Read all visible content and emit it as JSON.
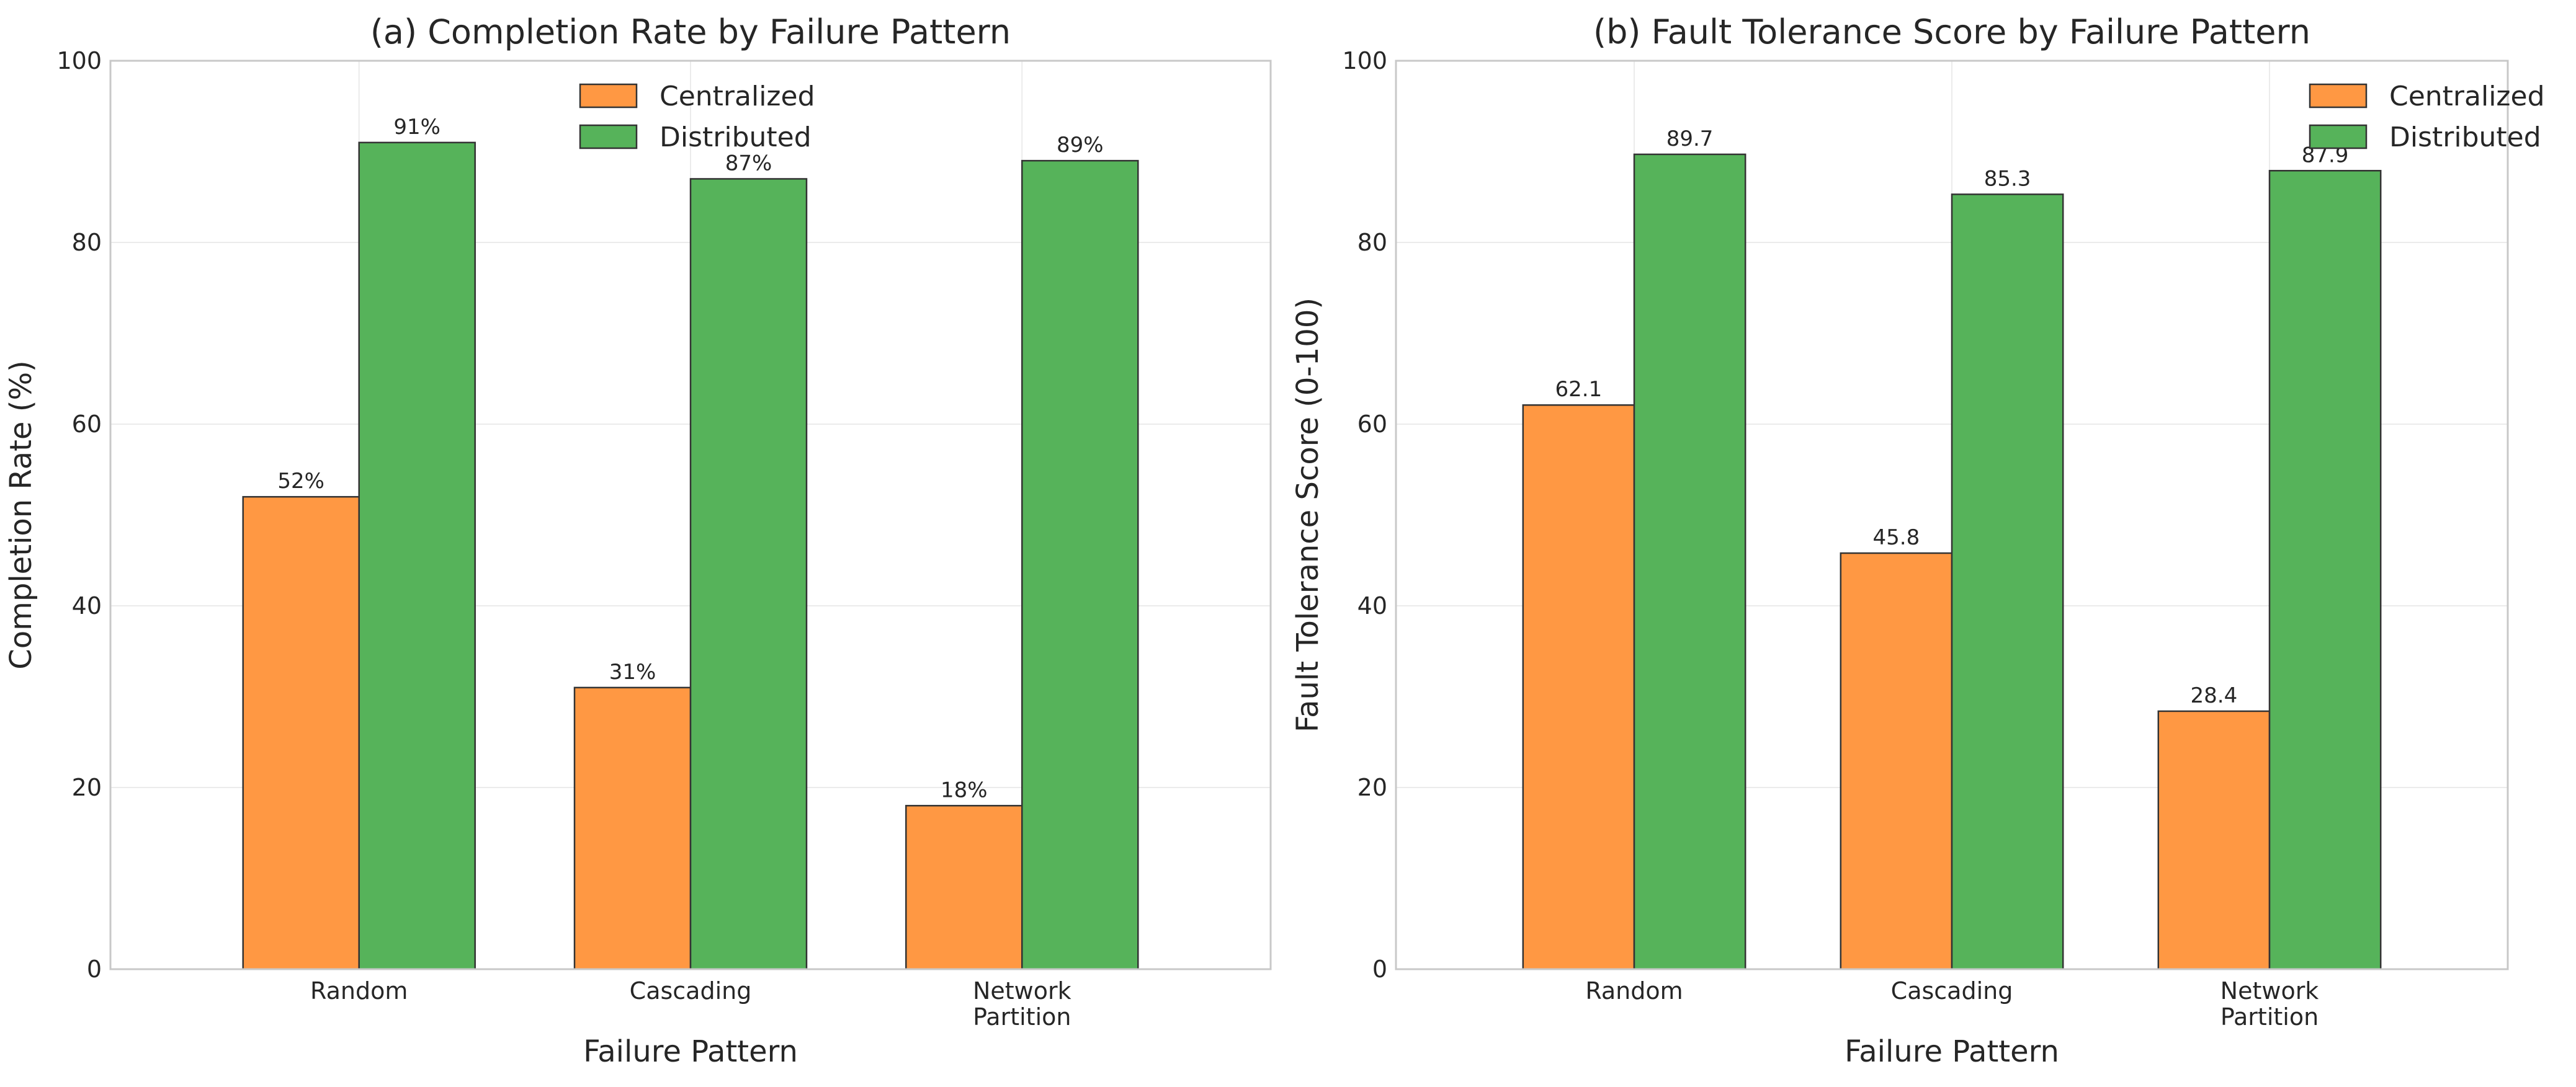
{
  "colors": {
    "centralized": "#ff9843",
    "distributed": "#56b35a"
  },
  "chart_data": [
    {
      "type": "bar",
      "title": "(a) Completion Rate by Failure Pattern",
      "xlabel": "Failure Pattern",
      "ylabel": "Completion Rate (%)",
      "ylim": [
        0,
        100
      ],
      "yticks": [
        0,
        20,
        40,
        60,
        80,
        100
      ],
      "grid": true,
      "legend_position": "top-center",
      "categories": [
        [
          "Random"
        ],
        [
          "Cascading"
        ],
        [
          "Network",
          "Partition"
        ]
      ],
      "series": [
        {
          "name": "Centralized",
          "color_key": "centralized",
          "values": [
            52,
            31,
            18
          ],
          "labels": [
            "52%",
            "31%",
            "18%"
          ]
        },
        {
          "name": "Distributed",
          "color_key": "distributed",
          "values": [
            91,
            87,
            89
          ],
          "labels": [
            "91%",
            "87%",
            "89%"
          ]
        }
      ]
    },
    {
      "type": "bar",
      "title": "(b) Fault Tolerance Score by Failure Pattern",
      "xlabel": "Failure Pattern",
      "ylabel": "Fault Tolerance Score (0-100)",
      "ylim": [
        0,
        100
      ],
      "yticks": [
        0,
        20,
        40,
        60,
        80,
        100
      ],
      "grid": true,
      "legend_position": "top-right",
      "categories": [
        [
          "Random"
        ],
        [
          "Cascading"
        ],
        [
          "Network",
          "Partition"
        ]
      ],
      "series": [
        {
          "name": "Centralized",
          "color_key": "centralized",
          "values": [
            62.1,
            45.8,
            28.4
          ],
          "labels": [
            "62.1",
            "45.8",
            "28.4"
          ]
        },
        {
          "name": "Distributed",
          "color_key": "distributed",
          "values": [
            89.7,
            85.3,
            87.9
          ],
          "labels": [
            "89.7",
            "85.3",
            "87.9"
          ]
        }
      ]
    }
  ]
}
